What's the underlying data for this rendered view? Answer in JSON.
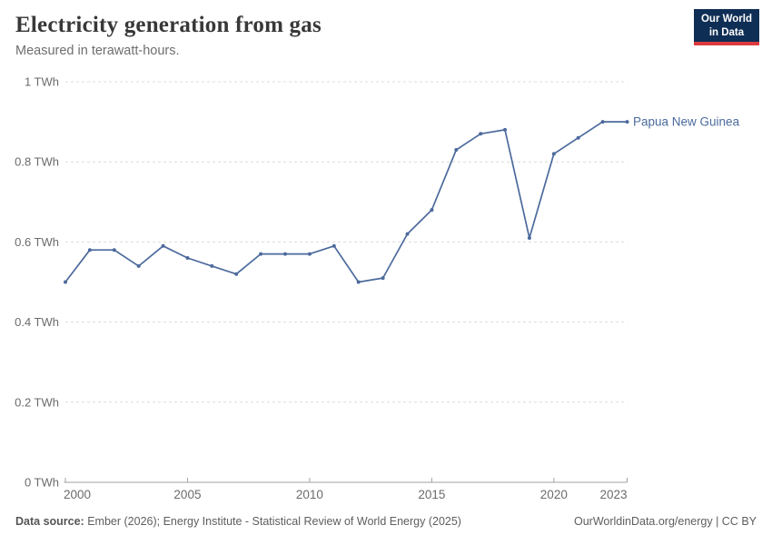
{
  "header": {
    "title": "Electricity generation from gas",
    "subtitle": "Measured in terawatt-hours.",
    "logo": {
      "line1": "Our World",
      "line2": "in Data",
      "bg_color": "#0F2E55",
      "accent_color": "#DC3A3F"
    }
  },
  "chart_data": {
    "type": "line",
    "title": "Electricity generation from gas",
    "subtitle": "Measured in terawatt-hours.",
    "xlabel": "",
    "ylabel": "TWh",
    "xlim": [
      2000,
      2023
    ],
    "ylim": [
      0,
      1
    ],
    "grid": "horizontal dashed",
    "legend_position": "end-of-line label",
    "x_ticks": [
      2000,
      2005,
      2010,
      2015,
      2020,
      2023
    ],
    "y_ticks": [
      {
        "value": 1,
        "label": "1 TWh"
      },
      {
        "value": 0.8,
        "label": "0.8 TWh"
      },
      {
        "value": 0.6,
        "label": "0.6 TWh"
      },
      {
        "value": 0.4,
        "label": "0.4 TWh"
      },
      {
        "value": 0.2,
        "label": "0.2 TWh"
      },
      {
        "value": 0,
        "label": "0 TWh"
      }
    ],
    "series": [
      {
        "name": "Papua New Guinea",
        "color": "#4C6A9C",
        "x": [
          2000,
          2001,
          2002,
          2003,
          2004,
          2005,
          2006,
          2007,
          2008,
          2009,
          2010,
          2011,
          2012,
          2013,
          2014,
          2015,
          2016,
          2017,
          2018,
          2019,
          2020,
          2021,
          2022,
          2023
        ],
        "values": [
          0.5,
          0.58,
          0.58,
          0.54,
          0.59,
          0.56,
          0.54,
          0.52,
          0.57,
          0.57,
          0.57,
          0.59,
          0.5,
          0.51,
          0.62,
          0.68,
          0.83,
          0.87,
          0.88,
          0.61,
          0.82,
          0.86,
          0.9,
          0.9
        ]
      }
    ]
  },
  "footer": {
    "source_label": "Data source:",
    "source_text": "Ember (2026); Energy Institute - Statistical Review of World Energy (2025)",
    "rights": "OurWorldinData.org/energy | CC BY"
  }
}
